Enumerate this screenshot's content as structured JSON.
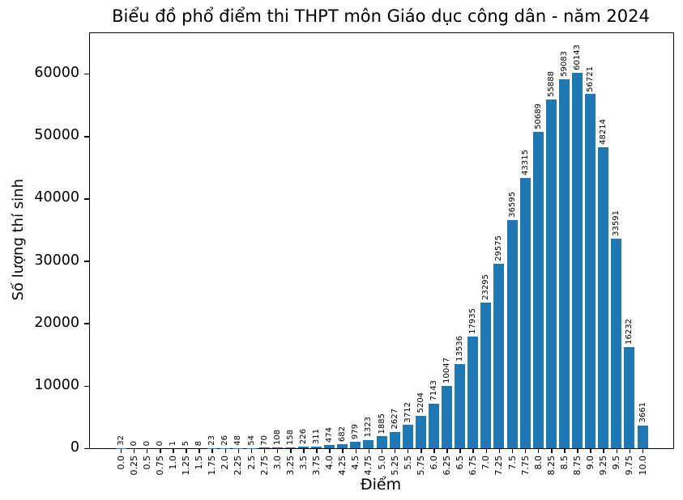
{
  "chart_data": {
    "type": "bar",
    "title": "Biểu đồ phổ điểm thi THPT môn Giáo dục công dân - năm 2024",
    "xlabel": "Điểm",
    "ylabel": "Số lượng thí sinh",
    "categories": [
      "0.0",
      "0.25",
      "0.5",
      "0.75",
      "1.0",
      "1.25",
      "1.5",
      "1.75",
      "2.0",
      "2.25",
      "2.5",
      "2.75",
      "3.0",
      "3.25",
      "3.5",
      "3.75",
      "4.0",
      "4.25",
      "4.5",
      "4.75",
      "5.0",
      "5.25",
      "5.5",
      "5.75",
      "6.0",
      "6.25",
      "6.5",
      "6.75",
      "7.0",
      "7.25",
      "7.5",
      "7.75",
      "8.0",
      "8.25",
      "8.5",
      "8.75",
      "9.0",
      "9.25",
      "9.5",
      "9.75",
      "10.0"
    ],
    "values": [
      32,
      0,
      0,
      0,
      1,
      5,
      8,
      23,
      26,
      48,
      54,
      70,
      108,
      158,
      226,
      311,
      474,
      682,
      979,
      1323,
      1885,
      2627,
      3712,
      5204,
      7143,
      10047,
      13536,
      17935,
      23295,
      29575,
      36595,
      43315,
      50689,
      55888,
      59083,
      60143,
      56721,
      48214,
      33591,
      16232,
      3661
    ],
    "bar_value_labels_shown": true,
    "yticks": [
      0,
      10000,
      20000,
      30000,
      40000,
      50000,
      60000
    ],
    "ylim": [
      0,
      66500
    ],
    "xtick_rotation": 90,
    "bar_color": "#1f77b4",
    "text_color": "#000000",
    "background_color": "#ffffff",
    "grid": false,
    "legend": null
  }
}
